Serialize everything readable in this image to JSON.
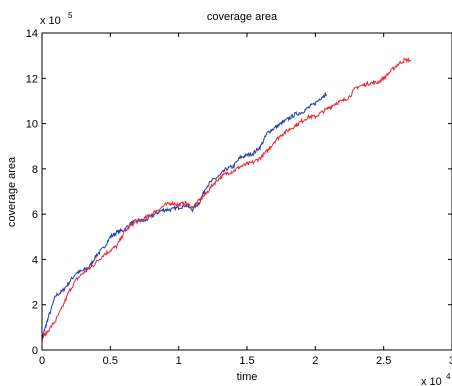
{
  "chart_data": {
    "type": "line",
    "title": "coverage area",
    "xlabel": "time",
    "ylabel": "coverage area",
    "x_multiplier": "x 10",
    "x_multiplier_exp": "4",
    "y_multiplier": "x 10",
    "y_multiplier_exp": "5",
    "xlim": [
      0,
      3
    ],
    "ylim": [
      0,
      14
    ],
    "x_ticks": [
      {
        "value": 0,
        "label": "0"
      },
      {
        "value": 0.5,
        "label": "0.5"
      },
      {
        "value": 1,
        "label": "1"
      },
      {
        "value": 1.5,
        "label": "1.5"
      },
      {
        "value": 2,
        "label": "2"
      },
      {
        "value": 2.5,
        "label": "2.5"
      },
      {
        "value": 3,
        "label": "3"
      }
    ],
    "y_ticks": [
      {
        "value": 0,
        "label": "0"
      },
      {
        "value": 2,
        "label": "2"
      },
      {
        "value": 4,
        "label": "4"
      },
      {
        "value": 6,
        "label": "6"
      },
      {
        "value": 8,
        "label": "8"
      },
      {
        "value": 10,
        "label": "10"
      },
      {
        "value": 12,
        "label": "12"
      },
      {
        "value": 14,
        "label": "14"
      }
    ],
    "grid": false,
    "series": [
      {
        "color": "#1f3fa8",
        "x": [
          0,
          0.02,
          0.05,
          0.1,
          0.15,
          0.2,
          0.25,
          0.3,
          0.35,
          0.4,
          0.45,
          0.5,
          0.55,
          0.6,
          0.65,
          0.7,
          0.75,
          0.8,
          0.85,
          0.9,
          0.95,
          1.0,
          1.05,
          1.1,
          1.15,
          1.2,
          1.25,
          1.3,
          1.35,
          1.4,
          1.45,
          1.5,
          1.55,
          1.6,
          1.65,
          1.7,
          1.75,
          1.8,
          1.85,
          1.9,
          1.95,
          2.0,
          2.05,
          2.08
        ],
        "y": [
          0.5,
          0.9,
          1.5,
          2.4,
          2.6,
          3.0,
          3.4,
          3.5,
          3.7,
          4.2,
          4.5,
          5.0,
          5.2,
          5.3,
          5.6,
          5.7,
          5.7,
          5.9,
          6.1,
          6.2,
          6.2,
          6.3,
          6.4,
          6.2,
          6.5,
          7.2,
          7.5,
          7.7,
          8.0,
          8.1,
          8.5,
          8.6,
          8.7,
          9.0,
          9.6,
          9.8,
          10.0,
          10.2,
          10.4,
          10.5,
          10.7,
          10.9,
          11.2,
          11.3
        ]
      },
      {
        "color": "#e8262b",
        "x": [
          0,
          0.05,
          0.1,
          0.15,
          0.2,
          0.25,
          0.3,
          0.35,
          0.4,
          0.45,
          0.5,
          0.55,
          0.6,
          0.65,
          0.7,
          0.75,
          0.8,
          0.85,
          0.9,
          0.95,
          1.0,
          1.05,
          1.1,
          1.15,
          1.2,
          1.25,
          1.3,
          1.35,
          1.4,
          1.45,
          1.5,
          1.55,
          1.6,
          1.65,
          1.7,
          1.75,
          1.8,
          1.85,
          1.9,
          1.95,
          2.0,
          2.05,
          2.1,
          2.15,
          2.2,
          2.25,
          2.3,
          2.35,
          2.4,
          2.45,
          2.5,
          2.55,
          2.6,
          2.65,
          2.7
        ],
        "y": [
          0.5,
          0.9,
          1.3,
          1.9,
          2.6,
          3.1,
          3.4,
          3.6,
          3.9,
          4.2,
          4.4,
          4.6,
          5.2,
          5.5,
          5.7,
          5.8,
          6.0,
          6.2,
          6.4,
          6.5,
          6.4,
          6.5,
          6.3,
          6.6,
          6.9,
          7.3,
          7.6,
          7.8,
          7.9,
          8.1,
          8.2,
          8.3,
          8.5,
          8.8,
          9.2,
          9.5,
          9.7,
          9.9,
          10.1,
          10.3,
          10.3,
          10.5,
          10.7,
          10.9,
          11.0,
          11.2,
          11.6,
          11.7,
          11.8,
          11.8,
          12.0,
          12.3,
          12.6,
          12.8,
          12.8
        ]
      }
    ]
  }
}
